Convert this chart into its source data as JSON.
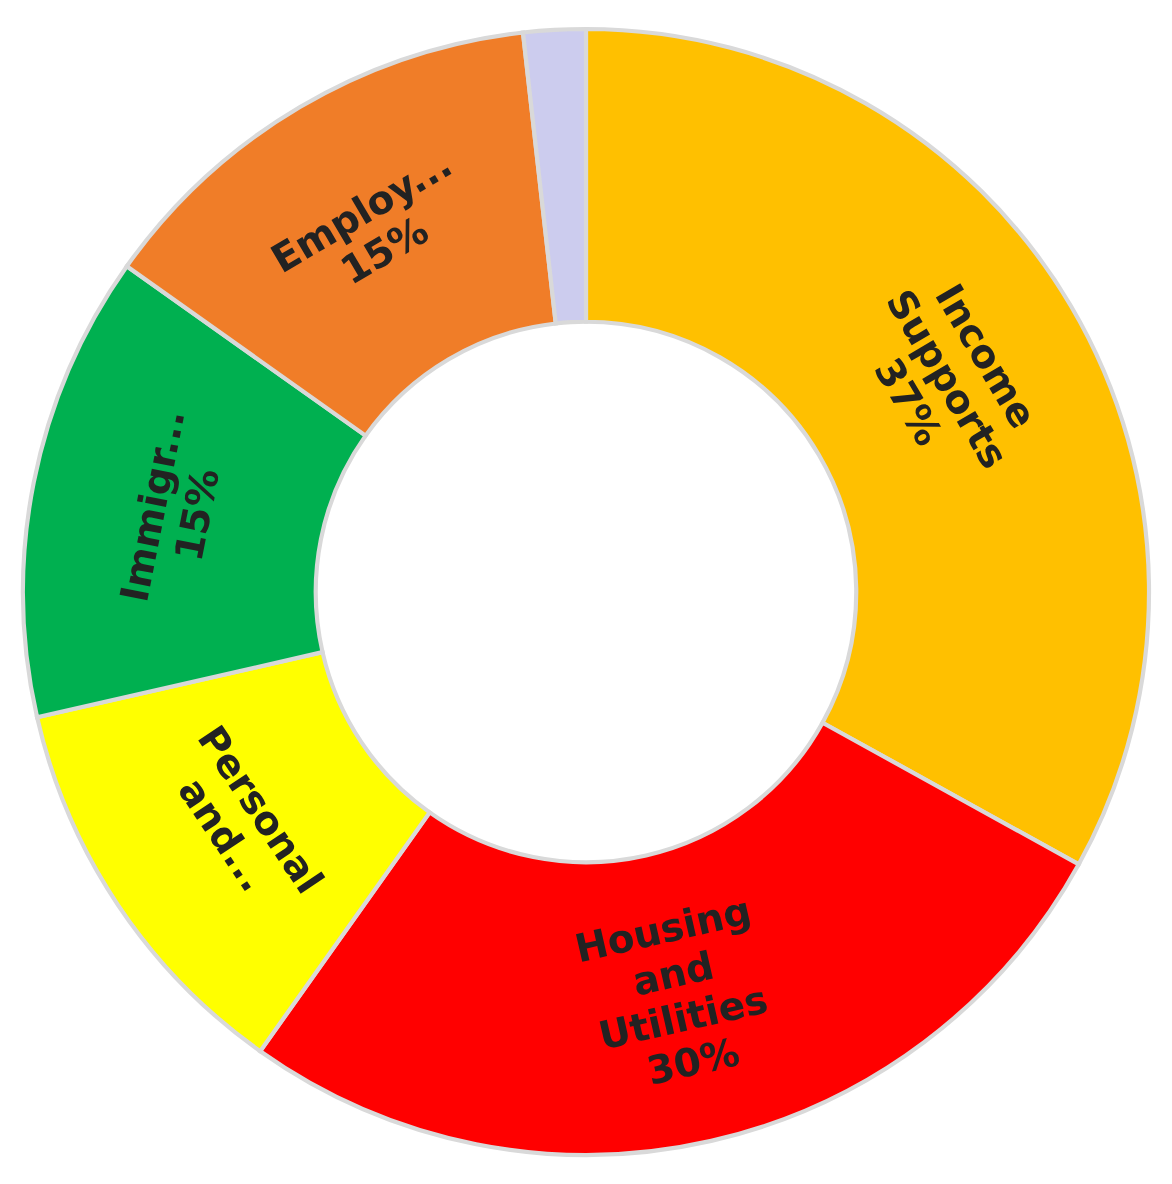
{
  "chart_data": {
    "type": "donut",
    "categories": [
      "Income Supports",
      "Housing and Utilities",
      "Personal and...",
      "Immigr...",
      "Employ...",
      null
    ],
    "values": [
      37,
      30,
      13,
      15,
      15,
      2
    ],
    "value_labels": [
      "37%",
      "30%",
      null,
      "15%",
      "15%",
      null
    ],
    "colors": [
      "#ffc000",
      "#ff0000",
      "#ffff00",
      "#00b050",
      "#f07d28",
      "#ccccee"
    ]
  }
}
